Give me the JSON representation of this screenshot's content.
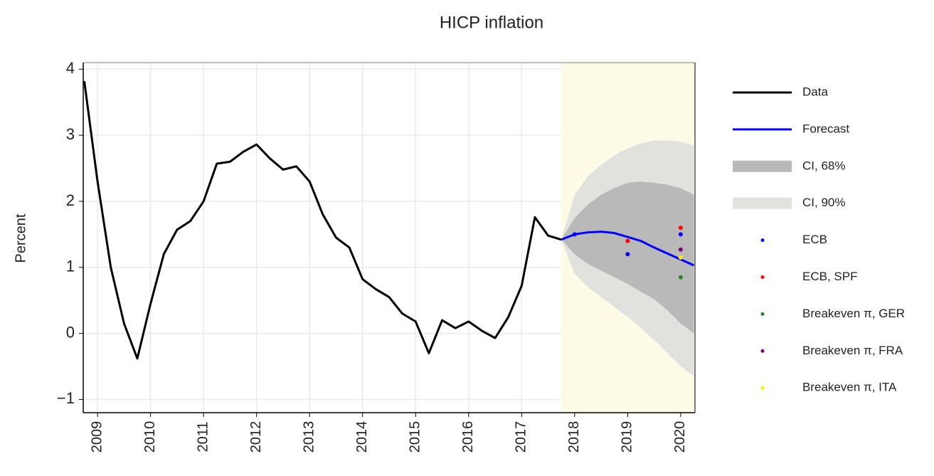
{
  "chart_data": {
    "type": "line",
    "title": "HICP inflation",
    "y_label": "Percent",
    "xlim": [
      2008.73,
      2020.27
    ],
    "xticks": [
      2009,
      2010,
      2011,
      2012,
      2013,
      2014,
      2015,
      2016,
      2017,
      2018,
      2019,
      2020
    ],
    "ylim": [
      -1.2,
      4.1
    ],
    "yticks": [
      {
        "value": -1,
        "label": "−1"
      },
      0,
      1,
      2,
      3,
      4
    ],
    "grid": true,
    "shade_color": "#fdfbe6",
    "series": [
      {
        "name": "Data",
        "type": "line",
        "color": "#000000",
        "x": [
          2008.75,
          2009.0,
          2009.25,
          2009.5,
          2009.75,
          2010.0,
          2010.25,
          2010.5,
          2010.75,
          2011.0,
          2011.25,
          2011.5,
          2011.75,
          2012.0,
          2012.25,
          2012.5,
          2012.75,
          2013.0,
          2013.25,
          2013.5,
          2013.75,
          2014.0,
          2014.25,
          2014.5,
          2014.75,
          2015.0,
          2015.25,
          2015.5,
          2015.75,
          2016.0,
          2016.25,
          2016.5,
          2016.75,
          2017.0,
          2017.25,
          2017.5,
          2017.75
        ],
        "values": [
          3.82,
          2.3,
          1.0,
          0.15,
          -0.38,
          0.45,
          1.2,
          1.57,
          1.7,
          2.0,
          2.57,
          2.6,
          2.75,
          2.86,
          2.65,
          2.48,
          2.53,
          2.3,
          1.8,
          1.45,
          1.3,
          0.82,
          0.67,
          0.55,
          0.3,
          0.18,
          -0.3,
          0.2,
          0.08,
          0.18,
          0.04,
          -0.07,
          0.25,
          0.72,
          1.76,
          1.48,
          1.42
        ]
      },
      {
        "name": "Forecast",
        "type": "line",
        "color": "#0000ff",
        "x": [
          2017.75,
          2018.0,
          2018.25,
          2018.5,
          2018.75,
          2019.0,
          2019.25,
          2019.5,
          2019.75,
          2020.0,
          2020.25
        ],
        "values": [
          1.42,
          1.5,
          1.53,
          1.54,
          1.52,
          1.46,
          1.4,
          1.3,
          1.21,
          1.12,
          1.03
        ]
      },
      {
        "name": "CI, 68%",
        "type": "band",
        "color": "#b9b9b9",
        "x": [
          2017.75,
          2018.0,
          2018.25,
          2018.5,
          2018.75,
          2019.0,
          2019.25,
          2019.5,
          2019.75,
          2020.0,
          2020.25
        ],
        "upper": [
          1.42,
          1.75,
          1.95,
          2.1,
          2.2,
          2.28,
          2.3,
          2.28,
          2.25,
          2.2,
          2.1
        ],
        "lower": [
          1.42,
          1.2,
          1.05,
          0.95,
          0.85,
          0.75,
          0.63,
          0.52,
          0.35,
          0.15,
          0.0
        ]
      },
      {
        "name": "CI, 90%",
        "type": "band",
        "color": "#e1e1dd",
        "x": [
          2017.75,
          2018.0,
          2018.25,
          2018.5,
          2018.75,
          2019.0,
          2019.25,
          2019.5,
          2019.75,
          2020.0,
          2020.25
        ],
        "upper": [
          1.42,
          2.1,
          2.38,
          2.55,
          2.7,
          2.8,
          2.88,
          2.92,
          2.92,
          2.9,
          2.85
        ],
        "lower": [
          1.42,
          0.9,
          0.7,
          0.55,
          0.4,
          0.25,
          0.08,
          -0.1,
          -0.3,
          -0.5,
          -0.65
        ]
      },
      {
        "name": "ECB",
        "type": "scatter",
        "color": "#0000ff",
        "x": [
          2018,
          2019,
          2020
        ],
        "values": [
          1.5,
          1.2,
          1.5
        ]
      },
      {
        "name": "ECB, SPF",
        "type": "scatter",
        "color": "#ff0000",
        "x": [
          2019,
          2020
        ],
        "values": [
          1.4,
          1.6
        ]
      },
      {
        "name": "Breakeven π, GER",
        "type": "scatter",
        "color": "#228b22",
        "x": [
          2020
        ],
        "values": [
          0.85
        ]
      },
      {
        "name": "Breakeven π, FRA",
        "type": "scatter",
        "color": "#800080",
        "x": [
          2020
        ],
        "values": [
          1.27
        ]
      },
      {
        "name": "Breakeven π, ITA",
        "type": "scatter",
        "color": "#ffee00",
        "x": [
          2020
        ],
        "values": [
          1.15
        ]
      }
    ]
  }
}
